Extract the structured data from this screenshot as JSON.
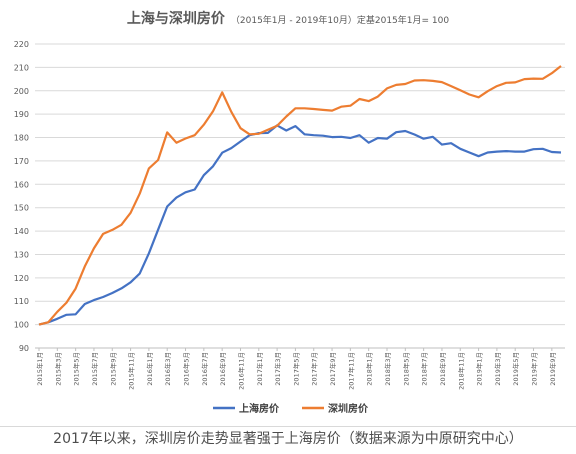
{
  "chart_data": {
    "type": "line",
    "title": "上海与深圳房价",
    "subtitle": "（2015年1月 - 2019年10月）定基2015年1月= 100",
    "ylim": [
      90,
      220
    ],
    "y_ticks": [
      90,
      100,
      110,
      120,
      130,
      140,
      150,
      160,
      170,
      180,
      190,
      200,
      210,
      220
    ],
    "grid": true,
    "legend_position": "bottom",
    "x": [
      "2015年1月",
      "2015年2月",
      "2015年3月",
      "2015年4月",
      "2015年5月",
      "2015年6月",
      "2015年7月",
      "2015年8月",
      "2015年9月",
      "2015年10月",
      "2015年11月",
      "2015年12月",
      "2016年1月",
      "2016年2月",
      "2016年3月",
      "2016年4月",
      "2016年5月",
      "2016年6月",
      "2016年7月",
      "2016年8月",
      "2016年9月",
      "2016年10月",
      "2016年11月",
      "2016年12月",
      "2017年1月",
      "2017年2月",
      "2017年3月",
      "2017年4月",
      "2017年5月",
      "2017年6月",
      "2017年7月",
      "2017年8月",
      "2017年9月",
      "2017年10月",
      "2017年11月",
      "2017年12月",
      "2018年1月",
      "2018年2月",
      "2018年3月",
      "2018年4月",
      "2018年5月",
      "2018年6月",
      "2018年7月",
      "2018年8月",
      "2018年9月",
      "2018年10月",
      "2018年11月",
      "2018年12月",
      "2019年1月",
      "2019年2月",
      "2019年3月",
      "2019年4月",
      "2019年5月",
      "2019年6月",
      "2019年7月",
      "2019年8月",
      "2019年9月",
      "2019年10月"
    ],
    "tick_labels": [
      "2015年1月",
      "2015年3月",
      "2015年5月",
      "2015年7月",
      "2015年9月",
      "2015年11月",
      "2016年1月",
      "2016年3月",
      "2016年5月",
      "2016年7月",
      "2016年9月",
      "2016年11月",
      "2017年1月",
      "2017年3月",
      "2017年5月",
      "2017年7月",
      "2017年9月",
      "2017年11月",
      "2018年1月",
      "2018年3月",
      "2018年5月",
      "2018年7月",
      "2018年9月",
      "2018年11月",
      "2019年1月",
      "2019年3月",
      "2019年5月",
      "2019年7月",
      "2019年9月"
    ],
    "series": [
      {
        "name": "上海房价",
        "color": "#4472c4",
        "values": [
          100,
          101,
          102.5,
          104.2,
          104.4,
          108.8,
          110.5,
          111.8,
          113.5,
          115.5,
          118.1,
          121.8,
          130.5,
          140.6,
          150.5,
          154.3,
          156.6,
          157.8,
          163.9,
          167.7,
          173.5,
          175.5,
          178.3,
          181,
          181.9,
          182,
          185.2,
          183,
          184.9,
          181.4,
          181,
          180.8,
          180.2,
          180.3,
          179.8,
          181,
          177.8,
          179.8,
          179.5,
          182.3,
          182.8,
          181.3,
          179.5,
          180.3,
          177,
          177.6,
          175.2,
          173.6,
          172,
          173.6,
          174,
          174.2,
          174,
          174,
          175,
          175.2,
          173.8,
          173.6
        ]
      },
      {
        "name": "深圳房价",
        "color": "#ed7d31",
        "values": [
          100,
          101,
          105.5,
          109.4,
          115.4,
          124.9,
          132.6,
          138.8,
          140.5,
          142.7,
          147.8,
          156,
          166.8,
          170.4,
          182.2,
          177.8,
          179.6,
          181,
          185.5,
          191.2,
          199.3,
          191,
          184,
          181.4,
          181.6,
          183.3,
          185,
          189,
          192.5,
          192.5,
          192.2,
          191.8,
          191.5,
          193.2,
          193.6,
          196.5,
          195.6,
          197.5,
          201,
          202.5,
          202.9,
          204.4,
          204.5,
          204.2,
          203.7,
          202,
          200.2,
          198.4,
          197.2,
          199.8,
          202,
          203.4,
          203.6,
          205,
          205.2,
          205.1,
          207.5,
          210.6
        ]
      }
    ]
  },
  "caption": "2017年以来，深圳房价走势显著强于上海房价（数据来源为中原研究中心）"
}
